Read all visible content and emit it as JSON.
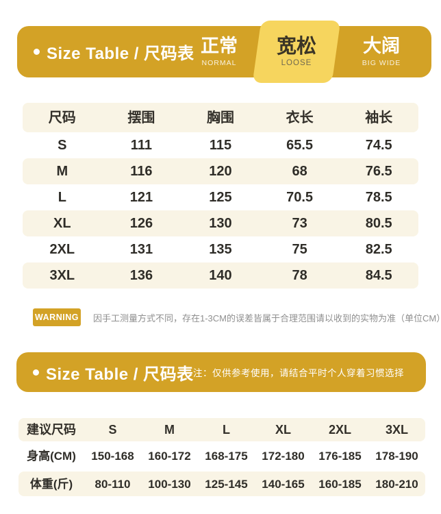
{
  "colors": {
    "gold": "#d3a226",
    "active_badge_yellow": "#f6d55e",
    "row_cream": "#f9f4e5",
    "text_dark": "#2f2d28",
    "warning_text_gray": "#8f8f8f",
    "background": "#ffffff"
  },
  "header1": {
    "title": "Size Table / 尺码表",
    "fits": [
      {
        "zh": "正常",
        "en": "NORMAL"
      },
      {
        "zh": "宽松",
        "en": "LOOSE"
      },
      {
        "zh": "大阔",
        "en": "BIG WIDE"
      }
    ],
    "active_fit": "宽松"
  },
  "size_table": {
    "headers": [
      "尺码",
      "摆围",
      "胸围",
      "衣长",
      "袖长"
    ],
    "rows": [
      [
        "S",
        "111",
        "115",
        "65.5",
        "74.5"
      ],
      [
        "M",
        "116",
        "120",
        "68",
        "76.5"
      ],
      [
        "L",
        "121",
        "125",
        "70.5",
        "78.5"
      ],
      [
        "XL",
        "126",
        "130",
        "73",
        "80.5"
      ],
      [
        "2XL",
        "131",
        "135",
        "75",
        "82.5"
      ],
      [
        "3XL",
        "136",
        "140",
        "78",
        "84.5"
      ]
    ]
  },
  "warning": {
    "label": "WARNING",
    "text": "因手工测量方式不同，存在1-3CM的误差皆属于合理范围请以收到的实物为准（单位CM）"
  },
  "header2": {
    "title": "Size Table / 尺码表",
    "note": "注：仅供参考使用，请结合平时个人穿着习惯选择"
  },
  "recommend_table": {
    "headers": [
      "建议尺码",
      "S",
      "M",
      "L",
      "XL",
      "2XL",
      "3XL"
    ],
    "rows": [
      {
        "label": "身高(CM)",
        "values": [
          "150-168",
          "160-172",
          "168-175",
          "172-180",
          "176-185",
          "178-190"
        ]
      },
      {
        "label": "体重(斤)",
        "values": [
          "80-110",
          "100-130",
          "125-145",
          "140-165",
          "160-185",
          "180-210"
        ]
      }
    ]
  }
}
